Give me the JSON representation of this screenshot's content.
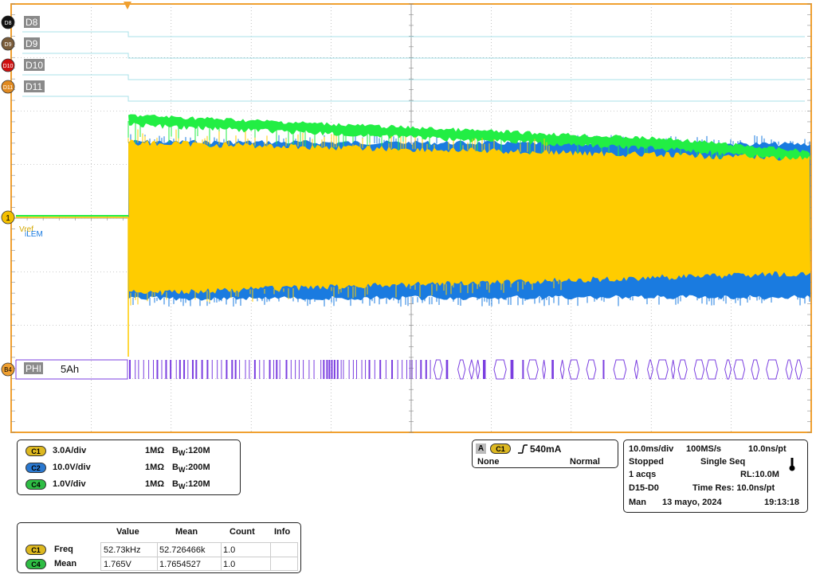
{
  "colors": {
    "grid_border": "#f0a030",
    "grid": "#9a9a9a",
    "c1": "#ffcc00",
    "c2": "#1a7be0",
    "c4": "#22ee44",
    "digital": "#7b3fe0",
    "dline": "#a8e0e8"
  },
  "trigger_marker_icon": "orange-down-triangle",
  "digital_channels": [
    {
      "badge": "D8",
      "label": "D8",
      "badge_color": "#111111"
    },
    {
      "badge": "D9",
      "label": "D9",
      "badge_color": "#7a5c3a"
    },
    {
      "badge": "D10",
      "label": "D10",
      "badge_color": "#d01010"
    },
    {
      "badge": "D11",
      "label": "D11",
      "badge_color": "#e08a20"
    }
  ],
  "ref_marker": "1",
  "labels": {
    "vref": "Vref",
    "ilem": "iLEM"
  },
  "bus": {
    "badge": "B4",
    "name": "PHI",
    "value": "5Ah"
  },
  "channels": [
    {
      "badge": "C1",
      "scale": "3.0A/div",
      "imp": "1MΩ",
      "bw_label": "B",
      "bw_sub": "W",
      "bw": ":120M"
    },
    {
      "badge": "C2",
      "scale": "10.0V/div",
      "imp": "1MΩ",
      "bw_label": "B",
      "bw_sub": "W",
      "bw": ":200M"
    },
    {
      "badge": "C4",
      "scale": "1.0V/div",
      "imp": "1MΩ",
      "bw_label": "B",
      "bw_sub": "W",
      "bw": ":120M"
    }
  ],
  "trigger": {
    "mode_badge": "A",
    "source": "C1",
    "slope_icon": "rising-edge-icon",
    "level": "540mA",
    "coupling": "None",
    "mode": "Normal"
  },
  "acq": {
    "timebase": "10.0ms/div",
    "rate": "100MS/s",
    "res": "10.0ns/pt",
    "state": "Stopped",
    "seq": "Single Seq",
    "acqs": "1 acqs",
    "rl": "RL:10.0M",
    "digital": "D15-D0",
    "time_res": "Time Res: 10.0ns/pt",
    "mode": "Man",
    "date": "13 mayo, 2024",
    "time": "19:13:18",
    "thermo_icon": "thermometer-icon"
  },
  "measurements": {
    "headers": [
      "Value",
      "Mean",
      "Count",
      "Info"
    ],
    "rows": [
      {
        "badge": "C1",
        "name": "Freq",
        "value": "52.73kHz",
        "mean": "52.726466k",
        "count": "1.0",
        "info": ""
      },
      {
        "badge": "C4",
        "name": "Mean",
        "value": "1.765V",
        "mean": "1.7654527",
        "count": "1.0",
        "info": ""
      }
    ]
  }
}
